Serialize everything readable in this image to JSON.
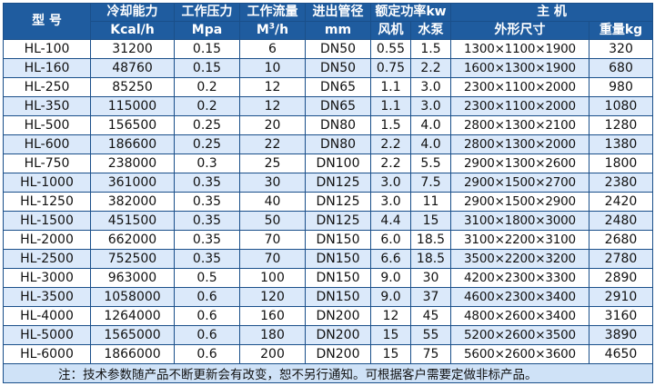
{
  "table": {
    "headers": {
      "model": "型 号",
      "cooling": "冷却能力",
      "cooling_unit": "Kcal/h",
      "pressure": "工作压力",
      "pressure_unit": "Mpa",
      "flow": "工作流量",
      "flow_unit_base": "M",
      "flow_unit_sup": "3",
      "flow_unit_tail": "/h",
      "pipe": "进出管径",
      "pipe_unit": "mm",
      "power": "额定功率kw",
      "fan": "风机",
      "pump": "水泵",
      "main": "主 机",
      "dims": "外形尺寸",
      "weight": "重量kg"
    },
    "rows": [
      {
        "model": "HL-100",
        "cooling": "31200",
        "pressure": "0.15",
        "flow": "6",
        "pipe": "DN50",
        "fan": "0.55",
        "pump": "1.5",
        "dims": "1300×1100×1900",
        "weight": "320"
      },
      {
        "model": "HL-160",
        "cooling": "48760",
        "pressure": "0.15",
        "flow": "10",
        "pipe": "DN50",
        "fan": "0.75",
        "pump": "2.2",
        "dims": "1600×1300×1900",
        "weight": "680"
      },
      {
        "model": "HL-250",
        "cooling": "85250",
        "pressure": "0.2",
        "flow": "12",
        "pipe": "DN65",
        "fan": "1.1",
        "pump": "3.0",
        "dims": "2300×1100×2000",
        "weight": "980"
      },
      {
        "model": "HL-350",
        "cooling": "115000",
        "pressure": "0.2",
        "flow": "12",
        "pipe": "DN65",
        "fan": "1.1",
        "pump": "3.0",
        "dims": "2300×1100×2000",
        "weight": "1080"
      },
      {
        "model": "HL-500",
        "cooling": "156500",
        "pressure": "0.25",
        "flow": "20",
        "pipe": "DN80",
        "fan": "1.5",
        "pump": "4.0",
        "dims": "2800×1300×2100",
        "weight": "1280"
      },
      {
        "model": "HL-600",
        "cooling": "186600",
        "pressure": "0.25",
        "flow": "22",
        "pipe": "DN80",
        "fan": "2.2",
        "pump": "4.0",
        "dims": "2800×1300×2000",
        "weight": "1380"
      },
      {
        "model": "HL-750",
        "cooling": "238000",
        "pressure": "0.3",
        "flow": "25",
        "pipe": "DN100",
        "fan": "2.2",
        "pump": "5.5",
        "dims": "2900×1300×2600",
        "weight": "1800"
      },
      {
        "model": "HL-1000",
        "cooling": "361000",
        "pressure": "0.35",
        "flow": "30",
        "pipe": "DN125",
        "fan": "3.0",
        "pump": "7.5",
        "dims": "2900×1500×2700",
        "weight": "2380"
      },
      {
        "model": "HL-1250",
        "cooling": "382000",
        "pressure": "0.35",
        "flow": "40",
        "pipe": "DN125",
        "fan": "3.0",
        "pump": "11",
        "dims": "2900×1500×2900",
        "weight": "2420"
      },
      {
        "model": "HL-1500",
        "cooling": "451500",
        "pressure": "0.35",
        "flow": "50",
        "pipe": "DN125",
        "fan": "4.4",
        "pump": "15",
        "dims": "3100×1800×3000",
        "weight": "2480"
      },
      {
        "model": "HL-2000",
        "cooling": "662000",
        "pressure": "0.35",
        "flow": "70",
        "pipe": "DN150",
        "fan": "6.0",
        "pump": "18.5",
        "dims": "3100×2200×3100",
        "weight": "2680"
      },
      {
        "model": "HL-2500",
        "cooling": "752500",
        "pressure": "0.35",
        "flow": "70",
        "pipe": "DN150",
        "fan": "6.6",
        "pump": "18.5",
        "dims": "3500×2200×3200",
        "weight": "2780"
      },
      {
        "model": "HL-3000",
        "cooling": "963000",
        "pressure": "0.5",
        "flow": "100",
        "pipe": "DN150",
        "fan": "9.0",
        "pump": "30",
        "dims": "4200×2300×3300",
        "weight": "2890"
      },
      {
        "model": "HL-3500",
        "cooling": "1058000",
        "pressure": "0.6",
        "flow": "120",
        "pipe": "DN150",
        "fan": "9.0",
        "pump": "37",
        "dims": "4600×2300×3400",
        "weight": "2910"
      },
      {
        "model": "HL-4000",
        "cooling": "1264000",
        "pressure": "0.6",
        "flow": "160",
        "pipe": "DN200",
        "fan": "12",
        "pump": "45",
        "dims": "4800×2600×3400",
        "weight": "3160"
      },
      {
        "model": "HL-5000",
        "cooling": "1565000",
        "pressure": "0.6",
        "flow": "180",
        "pipe": "DN200",
        "fan": "15",
        "pump": "55",
        "dims": "5200×2600×3500",
        "weight": "3890"
      },
      {
        "model": "HL-6000",
        "cooling": "1866000",
        "pressure": "0.6",
        "flow": "200",
        "pipe": "DN200",
        "fan": "15",
        "pump": "75",
        "dims": "5600×2600×3600",
        "weight": "4650"
      }
    ],
    "note": "注：技术参数随产品不断更新会有改变，恕不另行通知。可根据客户需要定做非标产品。"
  }
}
